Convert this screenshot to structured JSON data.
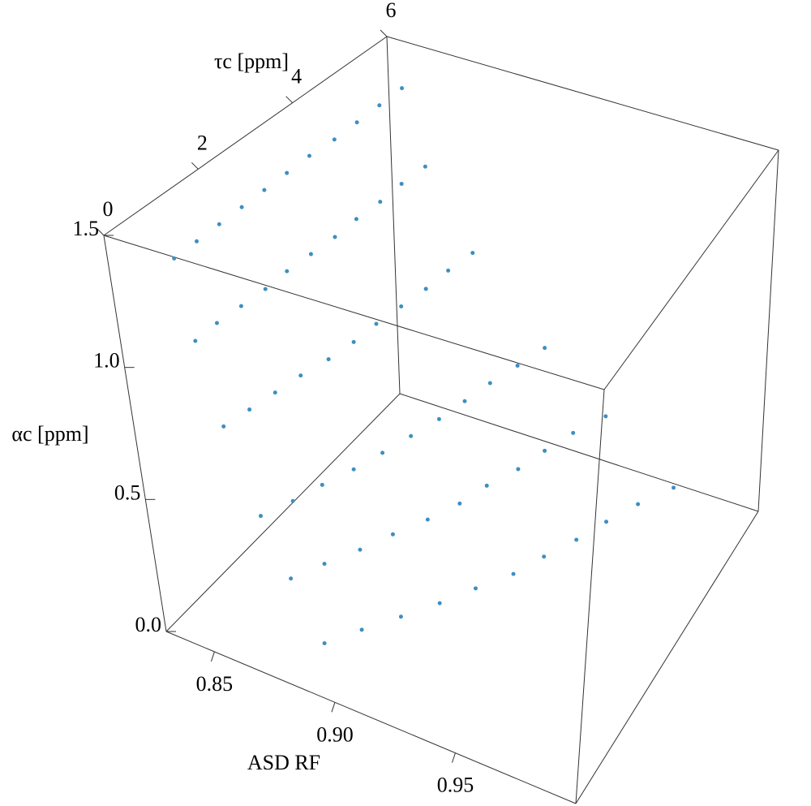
{
  "chart_data": {
    "type": "scatter3d",
    "x_label": "ASD RF",
    "y_label": "τc [ppm]",
    "z_label": "αc [ppm]",
    "color": "#3d8fc0",
    "xlim": [
      0.83,
      1.0
    ],
    "ylim": [
      0,
      6
    ],
    "zlim": [
      0,
      1.5
    ],
    "xticks": [
      {
        "value": 0.85,
        "label": "0.85"
      },
      {
        "value": 0.9,
        "label": "0.90"
      },
      {
        "value": 0.95,
        "label": "0.95"
      }
    ],
    "yticks": [
      0,
      2,
      4,
      6
    ],
    "zticks": [
      {
        "value": 0,
        "label": "0.0"
      },
      {
        "value": 0.5,
        "label": "0.5"
      },
      {
        "value": 1,
        "label": "1.0"
      },
      {
        "value": 1.5,
        "label": "1.5"
      }
    ],
    "x": [
      0.845,
      0.849,
      0.856,
      0.867,
      0.877,
      0.889,
      0.845,
      0.849,
      0.858,
      0.872,
      0.883,
      0.897,
      0.845,
      0.85,
      0.86,
      0.876,
      0.89,
      0.906,
      0.845,
      0.851,
      0.862,
      0.881,
      0.896,
      0.915,
      0.845,
      0.851,
      0.865,
      0.885,
      0.903,
      0.923,
      0.845,
      0.852,
      0.867,
      0.889,
      0.909,
      0.932,
      0.845,
      0.853,
      0.868,
      0.893,
      0.913,
      0.938,
      0.846,
      0.853,
      0.87,
      0.896,
      0.919,
      0.945,
      0.846,
      0.854,
      0.872,
      0.899,
      0.923,
      0.951,
      0.846,
      0.854,
      0.873,
      0.903,
      0.928,
      0.958,
      0.846,
      0.855,
      0.875,
      0.907,
      0.935,
      0.967
    ],
    "y": [
      0.5,
      0.5,
      0.5,
      0.5,
      0.5,
      0.5,
      1,
      1,
      1,
      1,
      1,
      1,
      1.5,
      1.5,
      1.5,
      1.5,
      1.5,
      1.5,
      2,
      2,
      2,
      2,
      2,
      2,
      2.5,
      2.5,
      2.5,
      2.5,
      2.5,
      2.5,
      3,
      3,
      3,
      3,
      3,
      3,
      3.5,
      3.5,
      3.5,
      3.5,
      3.5,
      3.5,
      4,
      4,
      4,
      4,
      4,
      4,
      4.5,
      4.5,
      4.5,
      4.5,
      4.5,
      4.5,
      5,
      5,
      5,
      5,
      5,
      5,
      5.5,
      5.5,
      5.5,
      5.5,
      5.5,
      5.5
    ],
    "z": [
      1.4,
      1.1,
      0.8,
      0.5,
      0.3,
      0.1,
      1.4,
      1.1,
      0.8,
      0.5,
      0.3,
      0.1,
      1.4,
      1.1,
      0.8,
      0.5,
      0.3,
      0.1,
      1.4,
      1.1,
      0.8,
      0.5,
      0.3,
      0.1,
      1.4,
      1.1,
      0.8,
      0.5,
      0.3,
      0.1,
      1.4,
      1.1,
      0.8,
      0.5,
      0.3,
      0.1,
      1.4,
      1.1,
      0.8,
      0.5,
      0.3,
      0.1,
      1.4,
      1.1,
      0.8,
      0.5,
      0.3,
      0.1,
      1.4,
      1.1,
      0.8,
      0.5,
      0.3,
      0.1,
      1.4,
      1.1,
      0.8,
      0.5,
      0.3,
      0.1,
      1.4,
      1.1,
      0.8,
      0.5,
      0.3,
      0.1
    ]
  }
}
